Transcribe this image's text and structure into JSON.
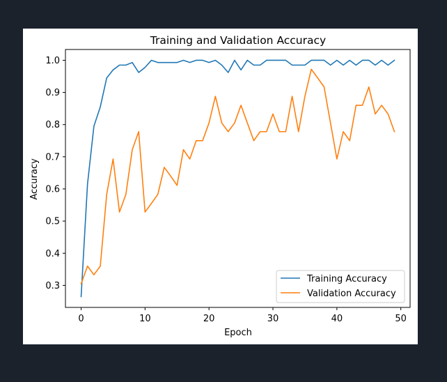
{
  "chart_data": {
    "type": "line",
    "title": "Training and Validation Accuracy",
    "xlabel": "Epoch",
    "ylabel": "Accuracy",
    "xlim": [
      -2.45,
      51.45
    ],
    "ylim": [
      0.2315,
      1.0335
    ],
    "xticks": [
      0,
      10,
      20,
      30,
      40,
      50
    ],
    "yticks": [
      0.3,
      0.4,
      0.5,
      0.6,
      0.7,
      0.8,
      0.9,
      1.0
    ],
    "xtick_labels": [
      "0",
      "10",
      "20",
      "30",
      "40",
      "50"
    ],
    "ytick_labels": [
      "0.3",
      "0.4",
      "0.5",
      "0.6",
      "0.7",
      "0.8",
      "0.9",
      "1.0"
    ],
    "legend_position": "lower-right",
    "grid": false,
    "x": [
      0,
      1,
      2,
      3,
      4,
      5,
      6,
      7,
      8,
      9,
      10,
      11,
      12,
      13,
      14,
      15,
      16,
      17,
      18,
      19,
      20,
      21,
      22,
      23,
      24,
      25,
      26,
      27,
      28,
      29,
      30,
      31,
      32,
      33,
      34,
      35,
      36,
      37,
      38,
      39,
      40,
      41,
      42,
      43,
      44,
      45,
      46,
      47,
      48,
      49
    ],
    "series": [
      {
        "name": "Training Accuracy",
        "color": "#1f77b4",
        "values": [
          0.265,
          0.615,
          0.795,
          0.855,
          0.945,
          0.97,
          0.985,
          0.985,
          0.993,
          0.962,
          0.978,
          1.0,
          0.993,
          0.993,
          0.993,
          0.993,
          1.0,
          0.993,
          1.0,
          1.0,
          0.993,
          1.0,
          0.985,
          0.962,
          1.0,
          0.97,
          1.0,
          0.985,
          0.985,
          1.0,
          1.0,
          1.0,
          1.0,
          0.985,
          0.985,
          0.985,
          1.0,
          1.0,
          1.0,
          0.985,
          1.0,
          0.985,
          1.0,
          0.985,
          1.0,
          1.0,
          0.985,
          1.0,
          0.985,
          1.0
        ]
      },
      {
        "name": "Validation Accuracy",
        "color": "#ff7f0e",
        "values": [
          0.305,
          0.36,
          0.333,
          0.36,
          0.583,
          0.693,
          0.528,
          0.583,
          0.722,
          0.778,
          0.528,
          0.555,
          0.583,
          0.667,
          0.64,
          0.611,
          0.722,
          0.693,
          0.75,
          0.75,
          0.805,
          0.888,
          0.805,
          0.778,
          0.805,
          0.86,
          0.805,
          0.75,
          0.778,
          0.778,
          0.833,
          0.778,
          0.778,
          0.888,
          0.778,
          0.888,
          0.972,
          0.945,
          0.917,
          0.805,
          0.693,
          0.778,
          0.75,
          0.86,
          0.86,
          0.917,
          0.833,
          0.86,
          0.833,
          0.778
        ]
      }
    ]
  }
}
